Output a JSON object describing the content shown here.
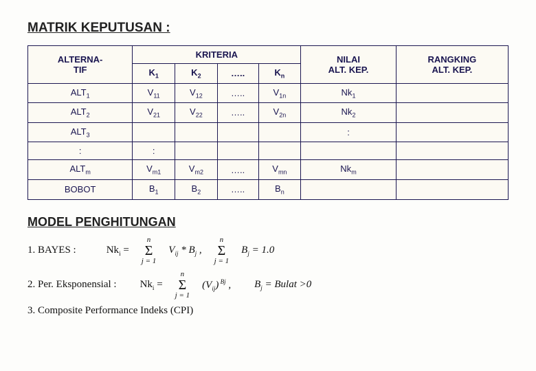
{
  "title": "MATRIK KEPUTUSAN :",
  "table": {
    "header": {
      "alt": "ALTERNA-\nTIF",
      "kriteria": "KRITERIA",
      "nilai": "NILAI\nALT. KEP.",
      "rangking": "RANGKING\nALT. KEP.",
      "k1": "K",
      "k2": "K",
      "dots": "…..",
      "kn": "K"
    },
    "rows": [
      {
        "alt": "ALT",
        "alt_s": "1",
        "c1": "V",
        "c1s": "11",
        "c2": "V",
        "c2s": "12",
        "c3": "…..",
        "c4": "V",
        "c4s": "1n",
        "nk": "Nk",
        "nks": "1"
      },
      {
        "alt": "ALT",
        "alt_s": "2",
        "c1": "V",
        "c1s": "21",
        "c2": "V",
        "c2s": "22",
        "c3": "…..",
        "c4": "V",
        "c4s": "2n",
        "nk": "Nk",
        "nks": "2"
      },
      {
        "alt": "ALT",
        "alt_s": "3",
        "c1": "",
        "c1s": "",
        "c2": "",
        "c2s": "",
        "c3": "",
        "c4": "",
        "c4s": "",
        "nk": ":",
        "nks": ""
      },
      {
        "alt": ":",
        "alt_s": "",
        "c1": ":",
        "c1s": "",
        "c2": "",
        "c2s": "",
        "c3": "",
        "c4": "",
        "c4s": "",
        "nk": "",
        "nks": ""
      },
      {
        "alt": "ALT",
        "alt_s": "m",
        "c1": "V",
        "c1s": "m1",
        "c2": "V",
        "c2s": "m2",
        "c3": "…..",
        "c4": "V",
        "c4s": "mn",
        "nk": "Nk",
        "nks": "m"
      },
      {
        "alt": "BOBOT",
        "alt_s": "",
        "c1": "B",
        "c1s": "1",
        "c2": "B",
        "c2s": "2",
        "c3": "…..",
        "c4": "B",
        "c4s": "n",
        "nk": "",
        "nks": ""
      }
    ]
  },
  "subheading": "MODEL PENGHITUNGAN",
  "calc": {
    "l1_label": "1.  BAYES :",
    "nki_eq": "Nk",
    "eq": " =",
    "sum_top": "n",
    "sum_bot": "j = 1",
    "vij_bj": "V",
    "star": " * ",
    "bj": "B",
    "comma": " ,",
    "bj_eq_one": " = 1.0",
    "l2_label": "2.  Per. Eksponensial :",
    "paren_vij": "(V",
    "close_paren": ")",
    "bj_bulat": " = Bulat >0",
    "l3_label": "3.  Composite Performance Indeks (CPI)"
  }
}
